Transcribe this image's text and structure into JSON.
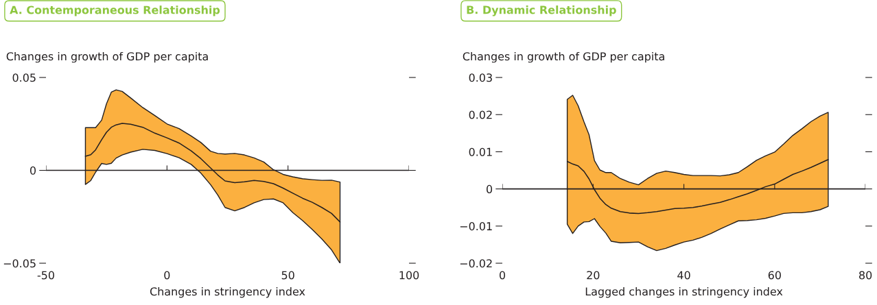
{
  "chart_data": [
    {
      "type": "line",
      "title": "A. Contemporaneous Relationship",
      "ylabel": "Changes in growth of GDP per capita",
      "xlabel": "Changes in stringency index",
      "xlim": [
        -50,
        100
      ],
      "xticks": [
        -50,
        0,
        50,
        100
      ],
      "ylim": [
        -0.05,
        0.05
      ],
      "yticks": [
        {
          "value": -0.05,
          "label": "−0.05"
        },
        0,
        0.05
      ],
      "ref_lines": [
        {
          "axis": "y",
          "value": 0,
          "color": "#231f20"
        }
      ],
      "grid": false,
      "legend": false,
      "series": [
        {
          "color": "#231f20",
          "x": [
            -33.7,
            -31.5,
            -29.5,
            -27,
            -25,
            -23,
            -21,
            -18.5,
            -15,
            -10,
            -5,
            0,
            5,
            10,
            14,
            18,
            21,
            24,
            28,
            32,
            36,
            40,
            44,
            48,
            52,
            56,
            60,
            64,
            68,
            71.5
          ],
          "values": [
            0.0076,
            0.0084,
            0.011,
            0.0165,
            0.0205,
            0.0232,
            0.0245,
            0.0253,
            0.0248,
            0.0232,
            0.02,
            0.0175,
            0.0147,
            0.0105,
            0.0063,
            0.0013,
            -0.0025,
            -0.0057,
            -0.0066,
            -0.0062,
            -0.0054,
            -0.006,
            -0.0072,
            -0.0096,
            -0.0123,
            -0.015,
            -0.0172,
            -0.02,
            -0.0232,
            -0.0278
          ],
          "upper": [
            0.023,
            0.023,
            0.023,
            0.027,
            0.0358,
            0.0421,
            0.0433,
            0.0425,
            0.039,
            0.0338,
            0.0295,
            0.025,
            0.0225,
            0.0185,
            0.015,
            0.0103,
            0.0091,
            0.0088,
            0.0091,
            0.0083,
            0.0067,
            0.0045,
            0.0003,
            -0.0022,
            -0.0035,
            -0.0045,
            -0.005,
            -0.0054,
            -0.0053,
            -0.0063
          ],
          "lower": [
            -0.0076,
            -0.0055,
            -0.001,
            0.0037,
            0.0032,
            0.0038,
            0.0066,
            0.0083,
            0.0098,
            0.0113,
            0.0107,
            0.009,
            0.0068,
            0.0032,
            -0.0015,
            -0.0077,
            -0.0133,
            -0.02,
            -0.0218,
            -0.02,
            -0.0175,
            -0.0157,
            -0.0154,
            -0.0175,
            -0.0228,
            -0.027,
            -0.0318,
            -0.037,
            -0.0428,
            -0.05
          ]
        }
      ]
    },
    {
      "type": "line",
      "title": "B. Dynamic Relationship",
      "ylabel": "Changes in growth of GDP per capita",
      "xlabel": "Lagged changes in stringency index",
      "xlim": [
        0,
        80
      ],
      "xticks": [
        0,
        20,
        40,
        60,
        80
      ],
      "ylim": [
        -0.02,
        0.03
      ],
      "yticks": [
        {
          "value": -0.02,
          "label": "−0.02"
        },
        {
          "value": -0.01,
          "label": "−0.01"
        },
        0,
        0.01,
        0.02,
        0.03
      ],
      "ref_lines": [
        {
          "axis": "y",
          "value": 0,
          "color": "#231f20"
        }
      ],
      "grid": false,
      "legend": false,
      "series": [
        {
          "color": "#231f20",
          "x": [
            14.3,
            15.5,
            16.7,
            18,
            19.1,
            20.3,
            21.5,
            22.8,
            24,
            26,
            28,
            30,
            32,
            34,
            36,
            38,
            40,
            42,
            44,
            46,
            48,
            50,
            52,
            54,
            56,
            58,
            60,
            62,
            64,
            66,
            68,
            70,
            71.8
          ],
          "values": [
            0.0074,
            0.0067,
            0.0062,
            0.0047,
            0.0027,
            -0.0002,
            -0.0025,
            -0.0042,
            -0.0052,
            -0.0061,
            -0.0065,
            -0.0066,
            -0.0064,
            -0.0061,
            -0.0057,
            -0.0053,
            -0.0052,
            -0.005,
            -0.0046,
            -0.0041,
            -0.0036,
            -0.0029,
            -0.0021,
            -0.0013,
            -0.0004,
            0.0006,
            0.0013,
            0.0026,
            0.0039,
            0.0048,
            0.0058,
            0.0069,
            0.0079
          ],
          "upper": [
            0.0241,
            0.0252,
            0.0224,
            0.018,
            0.0146,
            0.0076,
            0.0051,
            0.0044,
            0.0044,
            0.0028,
            0.0018,
            0.0011,
            0.0028,
            0.0042,
            0.0048,
            0.0044,
            0.0039,
            0.0036,
            0.0036,
            0.0036,
            0.0035,
            0.0038,
            0.0044,
            0.006,
            0.0077,
            0.0089,
            0.0099,
            0.0121,
            0.0144,
            0.0162,
            0.0181,
            0.0196,
            0.0206
          ],
          "lower": [
            -0.0095,
            -0.012,
            -0.01,
            -0.0089,
            -0.0088,
            -0.008,
            -0.0101,
            -0.0119,
            -0.0141,
            -0.0145,
            -0.0144,
            -0.0143,
            -0.0156,
            -0.0166,
            -0.016,
            -0.0151,
            -0.0143,
            -0.0138,
            -0.013,
            -0.012,
            -0.0108,
            -0.0097,
            -0.0086,
            -0.0085,
            -0.0083,
            -0.0079,
            -0.0073,
            -0.0066,
            -0.0064,
            -0.0064,
            -0.0061,
            -0.0056,
            -0.0047
          ]
        }
      ]
    }
  ]
}
